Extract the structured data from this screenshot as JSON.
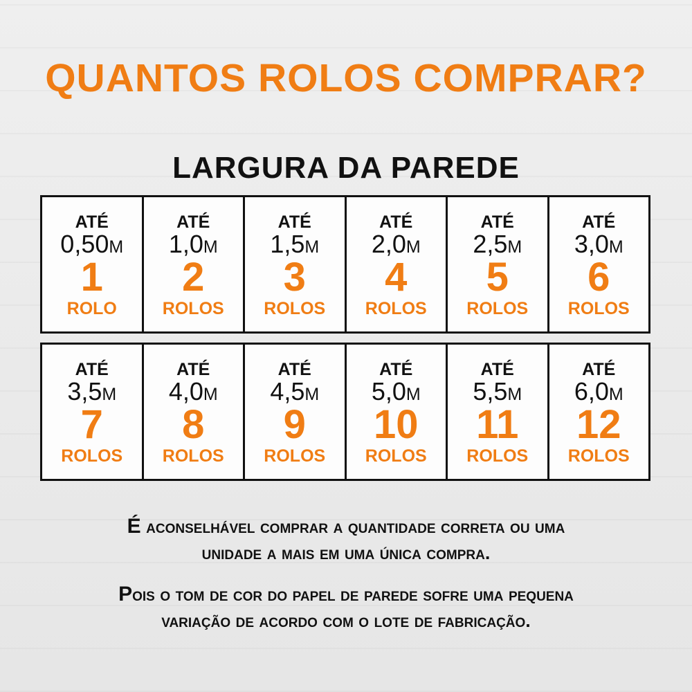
{
  "title": "QUANTOS ROLOS COMPRAR?",
  "subtitle": "LARGURA DA PAREDE",
  "colors": {
    "accent": "#f07d14",
    "text": "#111111",
    "background": "#ebebeb"
  },
  "rows": [
    [
      {
        "prefix": "ATÉ",
        "width": "0,50m",
        "rolls": "1",
        "unit": "ROLO"
      },
      {
        "prefix": "ATÉ",
        "width": "1,0m",
        "rolls": "2",
        "unit": "ROLOS"
      },
      {
        "prefix": "ATÉ",
        "width": "1,5m",
        "rolls": "3",
        "unit": "ROLOS"
      },
      {
        "prefix": "ATÉ",
        "width": "2,0m",
        "rolls": "4",
        "unit": "ROLOS"
      },
      {
        "prefix": "ATÉ",
        "width": "2,5m",
        "rolls": "5",
        "unit": "ROLOS"
      },
      {
        "prefix": "ATÉ",
        "width": "3,0m",
        "rolls": "6",
        "unit": "ROLOS"
      }
    ],
    [
      {
        "prefix": "ATÉ",
        "width": "3,5m",
        "rolls": "7",
        "unit": "ROLOS"
      },
      {
        "prefix": "ATÉ",
        "width": "4,0m",
        "rolls": "8",
        "unit": "ROLOS"
      },
      {
        "prefix": "ATÉ",
        "width": "4,5m",
        "rolls": "9",
        "unit": "ROLOS"
      },
      {
        "prefix": "ATÉ",
        "width": "5,0m",
        "rolls": "10",
        "unit": "ROLOS"
      },
      {
        "prefix": "ATÉ",
        "width": "5,5m",
        "rolls": "11",
        "unit": "ROLOS"
      },
      {
        "prefix": "ATÉ",
        "width": "6,0m",
        "rolls": "12",
        "unit": "ROLOS"
      }
    ]
  ],
  "notes": [
    {
      "initial": "É",
      "line1": " aconselhável comprar a quantidade correta ou uma",
      "line2": "unidade a mais em uma única compra."
    },
    {
      "initial": "P",
      "line1": "ois o tom de cor do papel de parede sofre uma pequena",
      "line2": "variação de acordo com o lote de fabricação."
    }
  ]
}
